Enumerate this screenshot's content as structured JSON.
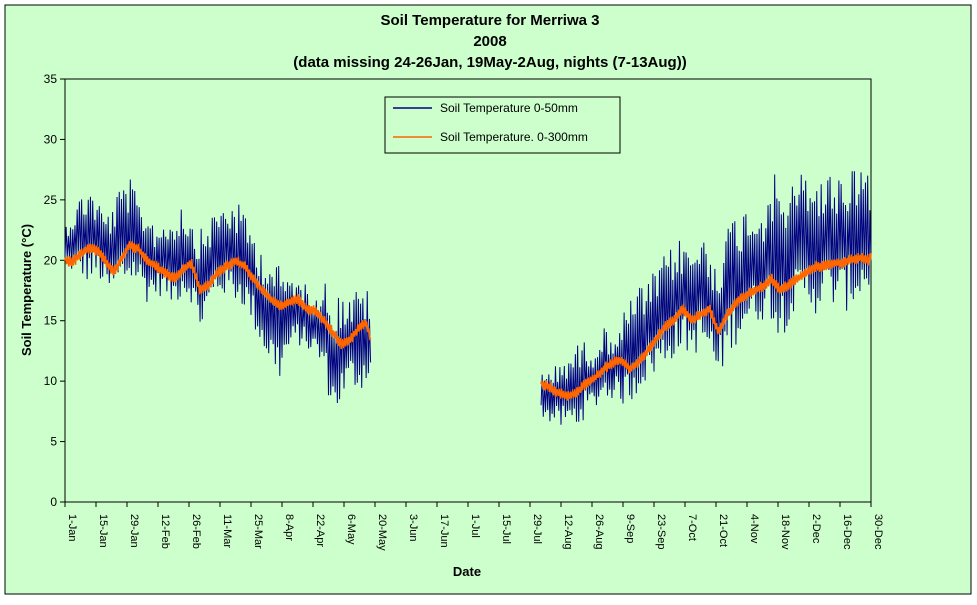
{
  "chart_data": {
    "type": "line",
    "title": "Soil Temperature for Merriwa 3",
    "subtitle": "2008",
    "subtitle2": "(data missing 24-26Jan, 19May-2Aug, nights (7-13Aug))",
    "xlabel": "Date",
    "ylabel": "Soil Temperature (°C)",
    "ylim": [
      0,
      35
    ],
    "yticks": [
      0,
      5,
      10,
      15,
      20,
      25,
      30,
      35
    ],
    "xlim_days": [
      0,
      364
    ],
    "x_ticks": [
      {
        "label": "1-Jan",
        "day": 0
      },
      {
        "label": "15-Jan",
        "day": 14
      },
      {
        "label": "29-Jan",
        "day": 28
      },
      {
        "label": "12-Feb",
        "day": 42
      },
      {
        "label": "26-Feb",
        "day": 56
      },
      {
        "label": "11-Mar",
        "day": 70
      },
      {
        "label": "25-Mar",
        "day": 84
      },
      {
        "label": "8-Apr",
        "day": 98
      },
      {
        "label": "22-Apr",
        "day": 112
      },
      {
        "label": "6-May",
        "day": 126
      },
      {
        "label": "20-May",
        "day": 140
      },
      {
        "label": "3-Jun",
        "day": 154
      },
      {
        "label": "17-Jun",
        "day": 168
      },
      {
        "label": "1-Jul",
        "day": 182
      },
      {
        "label": "15-Jul",
        "day": 196
      },
      {
        "label": "29-Jul",
        "day": 210
      },
      {
        "label": "12-Aug",
        "day": 224
      },
      {
        "label": "26-Aug",
        "day": 238
      },
      {
        "label": "9-Sep",
        "day": 252
      },
      {
        "label": "23-Sep",
        "day": 266
      },
      {
        "label": "7-Oct",
        "day": 280
      },
      {
        "label": "21-Oct",
        "day": 294
      },
      {
        "label": "4-Nov",
        "day": 308
      },
      {
        "label": "18-Nov",
        "day": 322
      },
      {
        "label": "2-Dec",
        "day": 336
      },
      {
        "label": "16-Dec",
        "day": 350
      },
      {
        "label": "30-Dec",
        "day": 364
      }
    ],
    "legend": {
      "placement": "top-center"
    },
    "grid": false,
    "series": [
      {
        "name": "Soil Temperature 0-50mm",
        "color": "#000080",
        "segments": [
          [
            [
              "1-Jan",
              19.5,
              23.0
            ],
            [
              "4-Jan",
              19.0,
              24.0
            ],
            [
              "8-Jan",
              18.5,
              25.5
            ],
            [
              "12-Jan",
              18.0,
              26.5
            ],
            [
              "16-Jan",
              18.5,
              25.0
            ],
            [
              "20-Jan",
              17.0,
              24.0
            ],
            [
              "23-Jan",
              17.0,
              25.0
            ],
            [
              "27-Jan",
              17.5,
              26.5
            ],
            [
              "30-Jan",
              18.0,
              27.0
            ],
            [
              "3-Feb",
              18.0,
              25.0
            ],
            [
              "7-Feb",
              16.5,
              24.5
            ],
            [
              "11-Feb",
              17.0,
              23.0
            ],
            [
              "15-Feb",
              17.0,
              23.5
            ],
            [
              "19-Feb",
              16.0,
              24.0
            ],
            [
              "23-Feb",
              17.0,
              25.0
            ],
            [
              "27-Feb",
              16.5,
              23.5
            ],
            [
              "2-Mar",
              14.0,
              22.5
            ],
            [
              "6-Mar",
              15.5,
              23.5
            ],
            [
              "10-Mar",
              17.0,
              24.5
            ],
            [
              "14-Mar",
              17.0,
              25.0
            ],
            [
              "18-Mar",
              16.5,
              25.0
            ],
            [
              "22-Mar",
              16.0,
              24.0
            ],
            [
              "26-Mar",
              14.5,
              22.5
            ],
            [
              "30-Mar",
              12.5,
              21.0
            ],
            [
              "3-Apr",
              11.0,
              20.5
            ],
            [
              "7-Apr",
              10.0,
              19.5
            ],
            [
              "11-Apr",
              12.0,
              19.0
            ],
            [
              "15-Apr",
              13.0,
              18.5
            ],
            [
              "19-Apr",
              12.5,
              18.0
            ],
            [
              "23-Apr",
              12.0,
              17.5
            ],
            [
              "27-Apr",
              10.5,
              18.5
            ],
            [
              "1-May",
              7.0,
              17.0
            ],
            [
              "5-May",
              8.0,
              17.5
            ],
            [
              "9-May",
              9.5,
              17.0
            ],
            [
              "13-May",
              9.0,
              18.0
            ],
            [
              "17-May",
              10.0,
              17.5
            ],
            [
              "18-May",
              10.5,
              16.5
            ]
          ],
          [
            [
              "3-Aug",
              7.0,
              11.5
            ],
            [
              "7-Aug",
              6.5,
              11.0
            ],
            [
              "11-Aug",
              6.0,
              11.5
            ],
            [
              "15-Aug",
              6.0,
              12.5
            ],
            [
              "19-Aug",
              6.0,
              13.0
            ],
            [
              "23-Aug",
              7.0,
              13.5
            ],
            [
              "27-Aug",
              7.5,
              13.0
            ],
            [
              "31-Aug",
              8.5,
              14.5
            ],
            [
              "4-Sep",
              8.5,
              14.0
            ],
            [
              "8-Sep",
              8.0,
              15.0
            ],
            [
              "12-Sep",
              8.0,
              17.0
            ],
            [
              "16-Sep",
              9.0,
              18.0
            ],
            [
              "20-Sep",
              10.0,
              18.0
            ],
            [
              "24-Sep",
              10.5,
              19.5
            ],
            [
              "28-Sep",
              11.0,
              20.5
            ],
            [
              "2-Oct",
              12.0,
              21.5
            ],
            [
              "6-Oct",
              12.5,
              22.0
            ],
            [
              "10-Oct",
              12.0,
              21.0
            ],
            [
              "14-Oct",
              12.5,
              22.5
            ],
            [
              "18-Oct",
              12.0,
              21.0
            ],
            [
              "22-Oct",
              9.5,
              20.5
            ],
            [
              "26-Oct",
              12.0,
              23.0
            ],
            [
              "30-Oct",
              13.0,
              24.0
            ],
            [
              "3-Nov",
              14.0,
              24.5
            ],
            [
              "7-Nov",
              14.5,
              25.0
            ],
            [
              "11-Nov",
              15.0,
              24.5
            ],
            [
              "15-Nov",
              15.0,
              27.5
            ],
            [
              "19-Nov",
              13.0,
              26.5
            ],
            [
              "23-Nov",
              15.0,
              26.0
            ],
            [
              "27-Nov",
              15.5,
              27.0
            ],
            [
              "1-Dec",
              16.0,
              28.0
            ],
            [
              "5-Dec",
              15.5,
              27.0
            ],
            [
              "9-Dec",
              16.0,
              27.0
            ],
            [
              "13-Dec",
              16.0,
              27.5
            ],
            [
              "17-Dec",
              15.5,
              27.5
            ],
            [
              "21-Dec",
              16.0,
              28.0
            ],
            [
              "25-Dec",
              16.5,
              28.5
            ],
            [
              "29-Dec",
              17.0,
              28.0
            ],
            [
              "30-Dec",
              17.5,
              27.0
            ]
          ]
        ]
      },
      {
        "name": "Soil Temperature. 0-300mm",
        "color": "#FF6600",
        "segments": [
          [
            [
              "1-Jan",
              20.0
            ],
            [
              "4-Jan",
              19.8
            ],
            [
              "8-Jan",
              20.5
            ],
            [
              "12-Jan",
              21.0
            ],
            [
              "16-Jan",
              20.8
            ],
            [
              "19-Jan",
              20.0
            ],
            [
              "23-Jan",
              19.0
            ],
            [
              "26-Jan",
              20.0
            ],
            [
              "30-Jan",
              21.2
            ],
            [
              "3-Feb",
              21.0
            ],
            [
              "7-Feb",
              20.0
            ],
            [
              "11-Feb",
              19.5
            ],
            [
              "15-Feb",
              19.0
            ],
            [
              "19-Feb",
              18.5
            ],
            [
              "23-Feb",
              19.2
            ],
            [
              "27-Feb",
              19.8
            ],
            [
              "2-Mar",
              17.5
            ],
            [
              "6-Mar",
              18.0
            ],
            [
              "10-Mar",
              19.0
            ],
            [
              "14-Mar",
              19.5
            ],
            [
              "18-Mar",
              20.0
            ],
            [
              "22-Mar",
              19.5
            ],
            [
              "26-Mar",
              18.5
            ],
            [
              "30-Mar",
              17.5
            ],
            [
              "3-Apr",
              16.8
            ],
            [
              "7-Apr",
              16.2
            ],
            [
              "11-Apr",
              16.5
            ],
            [
              "15-Apr",
              16.8
            ],
            [
              "19-Apr",
              16.0
            ],
            [
              "23-Apr",
              15.8
            ],
            [
              "27-Apr",
              15.0
            ],
            [
              "1-May",
              14.0
            ],
            [
              "5-May",
              13.0
            ],
            [
              "9-May",
              13.5
            ],
            [
              "13-May",
              14.5
            ],
            [
              "16-May",
              14.8
            ],
            [
              "18-May",
              13.5
            ]
          ],
          [
            [
              "3-Aug",
              9.8
            ],
            [
              "7-Aug",
              9.5
            ],
            [
              "11-Aug",
              9.0
            ],
            [
              "15-Aug",
              8.8
            ],
            [
              "19-Aug",
              9.0
            ],
            [
              "23-Aug",
              9.8
            ],
            [
              "27-Aug",
              10.2
            ],
            [
              "31-Aug",
              11.0
            ],
            [
              "4-Sep",
              11.5
            ],
            [
              "8-Sep",
              11.8
            ],
            [
              "12-Sep",
              11.0
            ],
            [
              "16-Sep",
              11.5
            ],
            [
              "20-Sep",
              12.5
            ],
            [
              "24-Sep",
              13.5
            ],
            [
              "28-Sep",
              14.5
            ],
            [
              "2-Oct",
              15.0
            ],
            [
              "6-Oct",
              16.0
            ],
            [
              "10-Oct",
              15.0
            ],
            [
              "14-Oct",
              15.5
            ],
            [
              "18-Oct",
              16.0
            ],
            [
              "22-Oct",
              14.0
            ],
            [
              "26-Oct",
              15.5
            ],
            [
              "30-Oct",
              16.5
            ],
            [
              "3-Nov",
              17.0
            ],
            [
              "7-Nov",
              17.5
            ],
            [
              "11-Nov",
              17.8
            ],
            [
              "15-Nov",
              18.5
            ],
            [
              "19-Nov",
              17.5
            ],
            [
              "23-Nov",
              18.0
            ],
            [
              "27-Nov",
              18.5
            ],
            [
              "1-Dec",
              19.0
            ],
            [
              "5-Dec",
              19.5
            ],
            [
              "9-Dec",
              19.5
            ],
            [
              "13-Dec",
              19.8
            ],
            [
              "17-Dec",
              19.8
            ],
            [
              "21-Dec",
              20.0
            ],
            [
              "25-Dec",
              20.2
            ],
            [
              "29-Dec",
              20.0
            ],
            [
              "30-Dec",
              20.5
            ]
          ]
        ]
      }
    ]
  }
}
